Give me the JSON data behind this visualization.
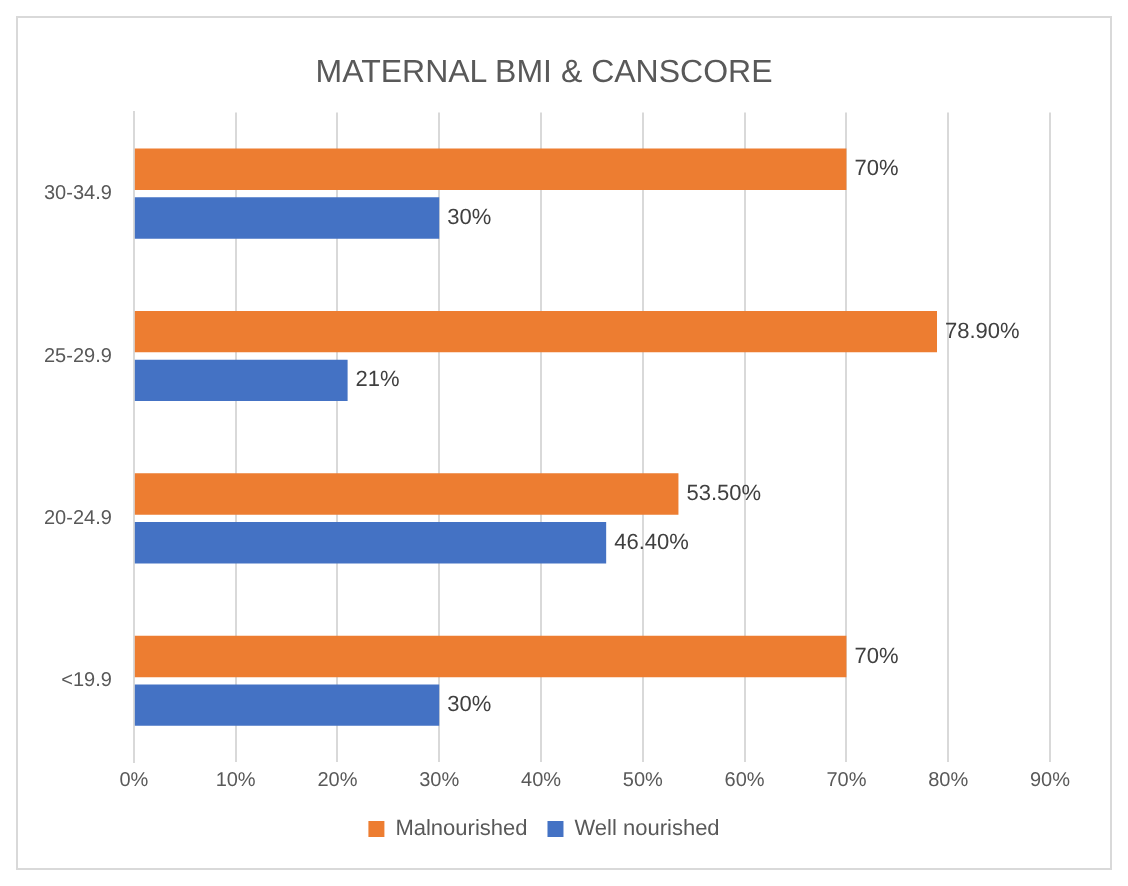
{
  "chart_data": {
    "type": "bar",
    "orientation": "horizontal",
    "title": "MATERNAL BMI & CANSCORE",
    "categories": [
      "30-34.9",
      "25-29.9",
      "20-24.9",
      "<19.9"
    ],
    "series": [
      {
        "name": "Malnourished",
        "color": "#ed7d31",
        "values": [
          70,
          78.9,
          53.5,
          70
        ],
        "value_labels": [
          "70%",
          "78.90%",
          "53.50%",
          "70%"
        ]
      },
      {
        "name": "Well nourished",
        "color": "#4472c4",
        "values": [
          30,
          21,
          46.4,
          30
        ],
        "value_labels": [
          "30%",
          "21%",
          "46.40%",
          "30%"
        ]
      }
    ],
    "xlim": [
      0,
      90
    ],
    "xticks": [
      {
        "value": 0,
        "label": "0%"
      },
      {
        "value": 10,
        "label": "10%"
      },
      {
        "value": 20,
        "label": "20%"
      },
      {
        "value": 30,
        "label": "30%"
      },
      {
        "value": 40,
        "label": "40%"
      },
      {
        "value": 50,
        "label": "50%"
      },
      {
        "value": 60,
        "label": "60%"
      },
      {
        "value": 70,
        "label": "70%"
      },
      {
        "value": 80,
        "label": "80%"
      },
      {
        "value": 90,
        "label": "90%"
      }
    ],
    "grid": "x",
    "legend": "bottom"
  }
}
